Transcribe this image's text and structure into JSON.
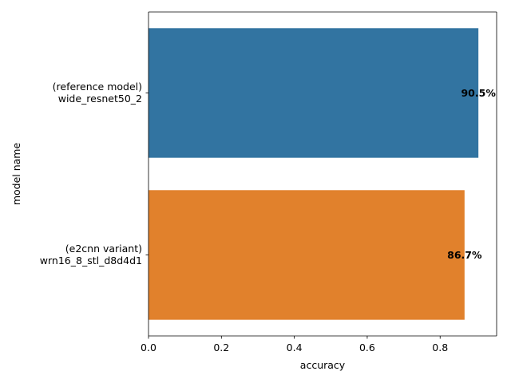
{
  "chart_data": {
    "type": "bar",
    "orientation": "horizontal",
    "categories": [
      [
        "(reference model)",
        "wide_resnet50_2"
      ],
      [
        "(e2cnn variant)",
        "wrn16_8_stl_d8d4d1"
      ]
    ],
    "values": [
      0.905,
      0.867
    ],
    "data_labels": [
      "90.5%",
      "86.7%"
    ],
    "colors": [
      "#3274a1",
      "#e1812c"
    ],
    "xlabel": "accuracy",
    "ylabel": "model name",
    "xlim": [
      0,
      0.955
    ],
    "xticks": [
      0.0,
      0.2,
      0.4,
      0.6,
      0.8
    ],
    "xtick_labels": [
      "0.0",
      "0.2",
      "0.4",
      "0.6",
      "0.8"
    ],
    "grid": false,
    "legend": "none"
  }
}
